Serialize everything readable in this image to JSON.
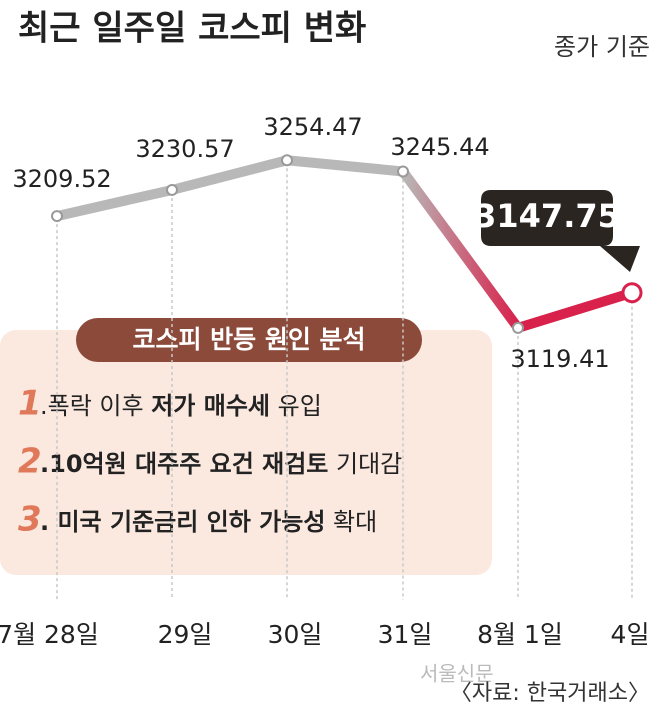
{
  "chart_data": {
    "type": "line",
    "title": "최근 일주일 코스피 변화",
    "subtitle": "종가 기준",
    "categories": [
      "7월 28일",
      "29일",
      "30일",
      "31일",
      "8월 1일",
      "4일"
    ],
    "values": [
      3209.52,
      3230.57,
      3254.47,
      3245.44,
      3119.41,
      3147.75
    ],
    "ylim": [
      3100,
      3270
    ],
    "colors": {
      "line": "#b8b8b8",
      "highlight": "#d8224c",
      "callout": "#2b2522"
    },
    "annotation": {
      "title": "코스피 반등 원인 분석",
      "items": [
        {
          "number": "1",
          "parts": [
            {
              "text": ".폭락 이후 ",
              "bold": false
            },
            {
              "text": "저가 매수세",
              "bold": true
            },
            {
              "text": " 유입",
              "bold": false
            }
          ]
        },
        {
          "number": "2",
          "parts": [
            {
              "text": ".10억원 대주주 요건 재검토",
              "bold": true
            },
            {
              "text": " 기대감",
              "bold": false
            }
          ]
        },
        {
          "number": "3",
          "parts": [
            {
              "text": ". 미국 기준금리 인하 가능성",
              "bold": true
            },
            {
              "text": " 확대",
              "bold": false
            }
          ]
        }
      ]
    },
    "source": "〈자료: 한국거래소〉",
    "watermark": "서울신문"
  }
}
